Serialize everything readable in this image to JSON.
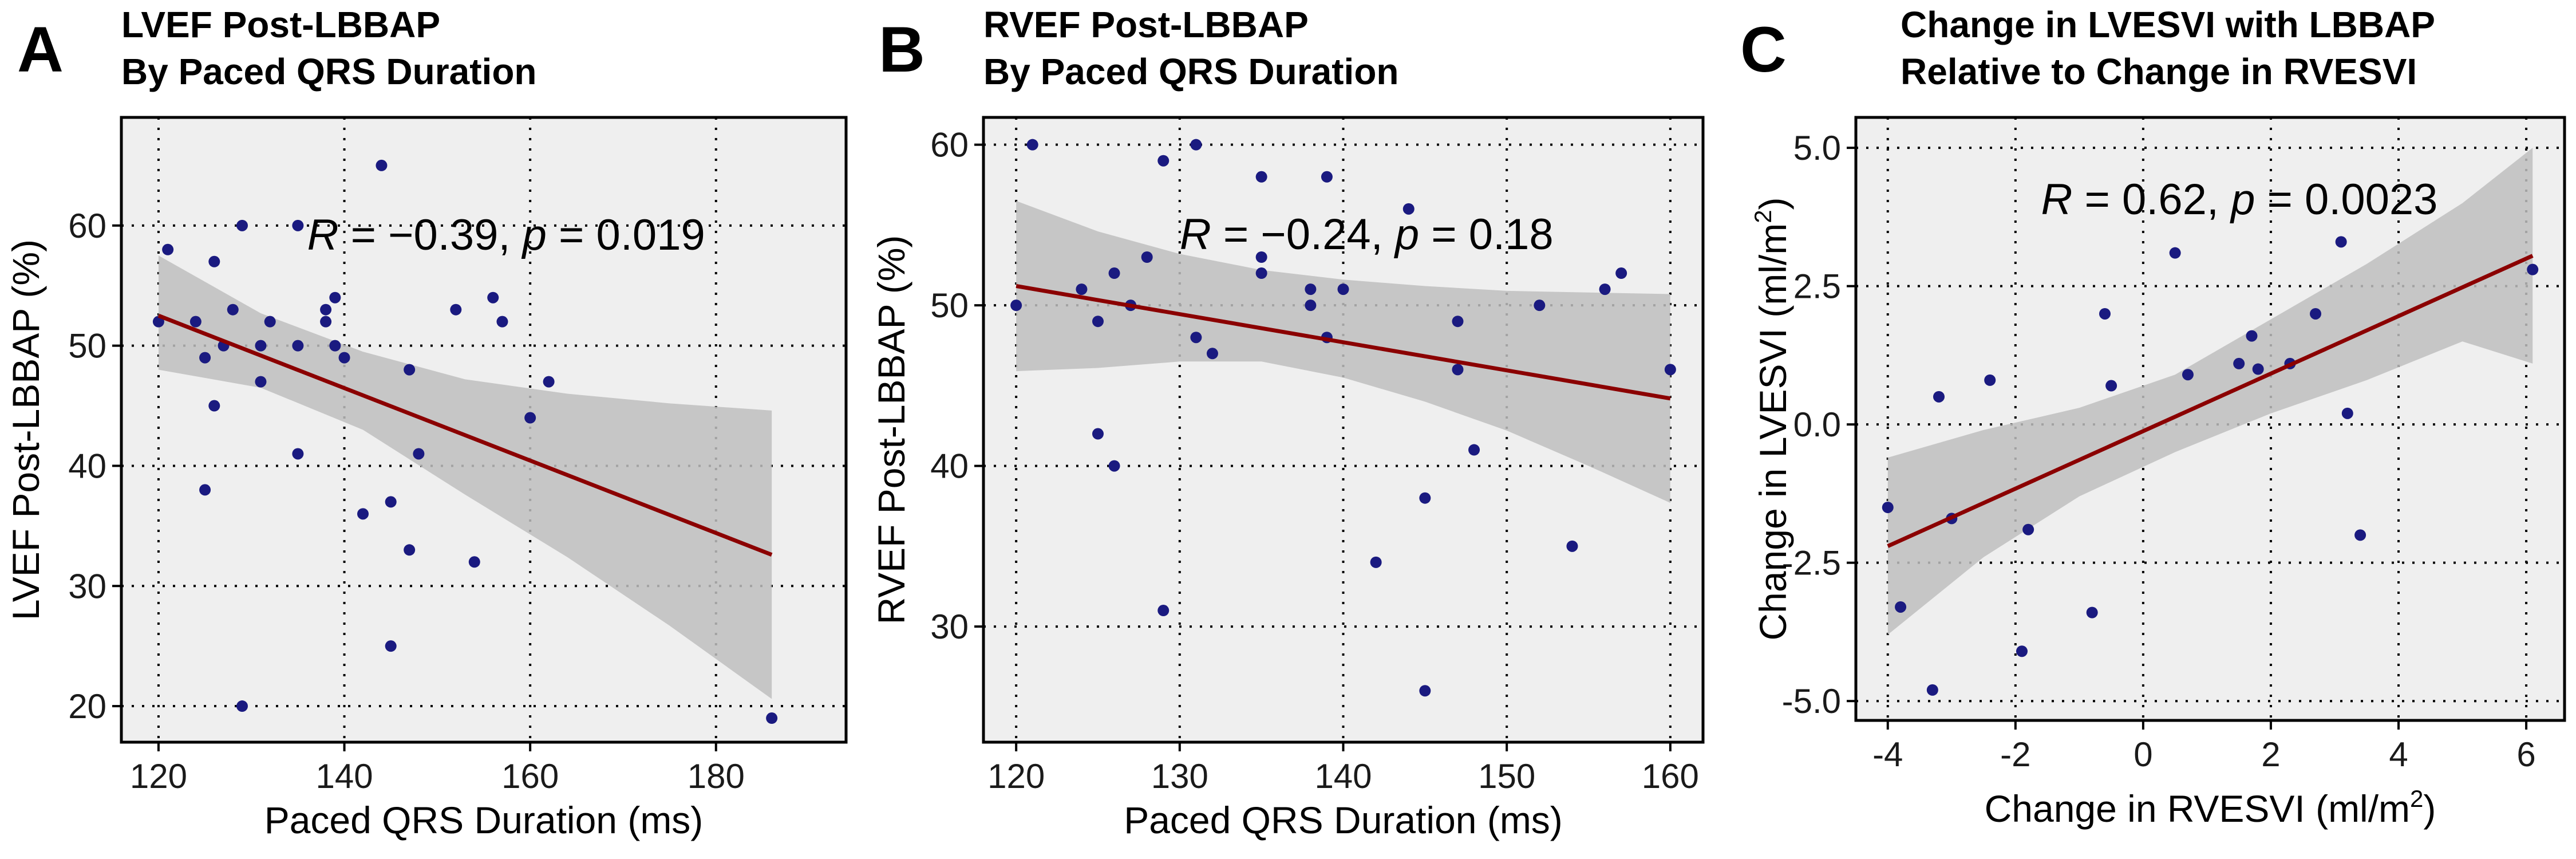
{
  "colors": {
    "panel_bg": "#EFEFEF",
    "point": "#1A1A80",
    "fit_line": "#8B0000",
    "ci_band": "#BEBEBE",
    "grid": "#000000",
    "text": "#000000"
  },
  "chart_data": [
    {
      "type": "scatter",
      "panel_letter": "A",
      "title_line1": "LVEF Post-LBBAP",
      "title_line2": "By Paced QRS Duration",
      "xlabel": "Paced QRS Duration (ms)",
      "ylabel": "LVEF Post-LBBAP (%)",
      "ylabel_unit": "",
      "xlim": [
        116,
        194
      ],
      "ylim": [
        17,
        69
      ],
      "xticks": [
        120,
        140,
        160,
        180
      ],
      "xtick_labels": [
        "120",
        "140",
        "160",
        "180"
      ],
      "yticks": [
        20,
        30,
        40,
        50,
        60
      ],
      "ytick_labels": [
        "20",
        "30",
        "40",
        "50",
        "60"
      ],
      "grid": true,
      "annotation": {
        "R_label": "R",
        "R_value": " = −0.39, ",
        "p_label": "p",
        "p_value": " = 0.019",
        "x": 136,
        "y": 58
      },
      "points": [
        [
          120,
          52
        ],
        [
          121,
          58
        ],
        [
          124,
          52
        ],
        [
          125,
          38
        ],
        [
          125,
          49
        ],
        [
          126,
          57
        ],
        [
          126,
          45
        ],
        [
          127,
          50
        ],
        [
          128,
          53
        ],
        [
          129,
          60
        ],
        [
          129,
          20
        ],
        [
          131,
          50
        ],
        [
          131,
          47
        ],
        [
          132,
          52
        ],
        [
          135,
          60
        ],
        [
          135,
          50
        ],
        [
          135,
          41
        ],
        [
          138,
          52
        ],
        [
          138,
          53
        ],
        [
          139,
          54
        ],
        [
          139,
          50
        ],
        [
          140,
          49
        ],
        [
          142,
          36
        ],
        [
          144,
          65
        ],
        [
          145,
          37
        ],
        [
          145,
          25
        ],
        [
          147,
          33
        ],
        [
          147,
          48
        ],
        [
          148,
          41
        ],
        [
          152,
          53
        ],
        [
          154,
          32
        ],
        [
          156,
          54
        ],
        [
          157,
          52
        ],
        [
          160,
          44
        ],
        [
          162,
          47
        ],
        [
          186,
          19
        ]
      ],
      "fit": {
        "x0": 120,
        "y0": 52.5,
        "x1": 186,
        "y1": 32.6
      },
      "ci": {
        "x": [
          120,
          131,
          142,
          153,
          164,
          175,
          186
        ],
        "upper": [
          57.5,
          52.7,
          49.5,
          47.2,
          46.0,
          45.2,
          44.6
        ],
        "lower": [
          48.0,
          46.5,
          43.0,
          37.6,
          32.4,
          26.7,
          20.6
        ]
      }
    },
    {
      "type": "scatter",
      "panel_letter": "B",
      "title_line1": "RVEF Post-LBBAP",
      "title_line2": "By Paced QRS Duration",
      "xlabel": "Paced QRS Duration (ms)",
      "ylabel": "RVEF Post-LBBAP (%)",
      "ylabel_unit": "",
      "xlim": [
        118,
        162
      ],
      "ylim": [
        22.8,
        61.7
      ],
      "xticks": [
        120,
        130,
        140,
        150,
        160
      ],
      "xtick_labels": [
        "120",
        "130",
        "140",
        "150",
        "160"
      ],
      "yticks": [
        30,
        40,
        50,
        60
      ],
      "ytick_labels": [
        "30",
        "40",
        "50",
        "60"
      ],
      "grid": true,
      "annotation": {
        "R_label": "R",
        "R_value": " = −0.24, ",
        "p_label": "p",
        "p_value": " = 0.18",
        "x": 130,
        "y": 53.5
      },
      "points": [
        [
          120,
          50
        ],
        [
          121,
          60
        ],
        [
          124,
          51
        ],
        [
          125,
          49
        ],
        [
          125,
          42
        ],
        [
          126,
          52
        ],
        [
          126,
          40
        ],
        [
          127,
          50
        ],
        [
          128,
          53
        ],
        [
          129,
          59
        ],
        [
          129,
          31
        ],
        [
          131,
          60
        ],
        [
          131,
          48
        ],
        [
          132,
          47
        ],
        [
          135,
          58
        ],
        [
          135,
          53
        ],
        [
          135,
          52
        ],
        [
          138,
          51
        ],
        [
          138,
          50
        ],
        [
          139,
          58
        ],
        [
          139,
          48
        ],
        [
          140,
          51
        ],
        [
          142,
          34
        ],
        [
          144,
          56
        ],
        [
          145,
          38
        ],
        [
          145,
          26
        ],
        [
          147,
          46
        ],
        [
          147,
          49
        ],
        [
          148,
          41
        ],
        [
          152,
          50
        ],
        [
          154,
          35
        ],
        [
          156,
          51
        ],
        [
          157,
          52
        ],
        [
          160,
          46
        ]
      ],
      "fit": {
        "x0": 120,
        "y0": 51.2,
        "x1": 160,
        "y1": 44.2
      },
      "ci": {
        "x": [
          120,
          125,
          130,
          135,
          140,
          145,
          150,
          155,
          160
        ],
        "upper": [
          56.5,
          54.6,
          53.2,
          52.2,
          51.6,
          51.2,
          50.9,
          50.8,
          50.7
        ],
        "lower": [
          45.9,
          46.1,
          46.5,
          46.5,
          45.5,
          44.0,
          42.2,
          40.0,
          37.7
        ]
      }
    },
    {
      "type": "scatter",
      "panel_letter": "C",
      "title_line1": "Change in LVESVI with LBBAP",
      "title_line2": "Relative to Change in RVESVI",
      "xlabel": "Change in RVESVI (ml/m",
      "xlabel_sup": "2",
      "xlabel_end": ")",
      "ylabel": "Change in LVESVI (ml/m",
      "ylabel_sup": "2",
      "ylabel_end": ")",
      "xlim": [
        -4.5,
        6.6
      ],
      "ylim": [
        -5.35,
        5.55
      ],
      "xticks": [
        -4,
        -2,
        0,
        2,
        4,
        6
      ],
      "xtick_labels": [
        "-4",
        "-2",
        "0",
        "2",
        "4",
        "6"
      ],
      "yticks": [
        -5.0,
        -2.5,
        0.0,
        2.5,
        5.0
      ],
      "ytick_labels": [
        "-5.0",
        "-2.5",
        "0.0",
        "2.5",
        "5.0"
      ],
      "grid": true,
      "annotation": {
        "R_label": "R",
        "R_value": " = 0.62, ",
        "p_label": "p",
        "p_value": " = 0.0023",
        "x": -1.6,
        "y": 3.8
      },
      "points": [
        [
          -4.0,
          -1.5
        ],
        [
          -3.8,
          -3.3
        ],
        [
          -3.3,
          -4.8
        ],
        [
          -3.2,
          0.5
        ],
        [
          -3.0,
          -1.7
        ],
        [
          -2.4,
          0.8
        ],
        [
          -1.9,
          -4.1
        ],
        [
          -1.8,
          -1.9
        ],
        [
          -0.8,
          -3.4
        ],
        [
          -0.6,
          2.0
        ],
        [
          -0.5,
          0.7
        ],
        [
          0.5,
          3.1
        ],
        [
          0.7,
          0.9
        ],
        [
          1.5,
          1.1
        ],
        [
          1.7,
          1.6
        ],
        [
          1.8,
          1.0
        ],
        [
          2.3,
          1.1
        ],
        [
          2.7,
          2.0
        ],
        [
          3.1,
          3.3
        ],
        [
          3.2,
          0.2
        ],
        [
          3.4,
          -2.0
        ],
        [
          6.1,
          2.8
        ]
      ],
      "fit": {
        "x0": -4.0,
        "y0": -2.2,
        "x1": 6.1,
        "y1": 3.05
      },
      "ci": {
        "x": [
          -4.0,
          -2.5,
          -1.0,
          0.5,
          2.0,
          3.5,
          5.0,
          6.1
        ],
        "upper": [
          -0.6,
          -0.1,
          0.3,
          0.9,
          1.9,
          2.9,
          4.0,
          5.0
        ],
        "lower": [
          -3.8,
          -2.4,
          -1.3,
          -0.5,
          0.2,
          0.8,
          1.5,
          1.1
        ]
      }
    }
  ]
}
